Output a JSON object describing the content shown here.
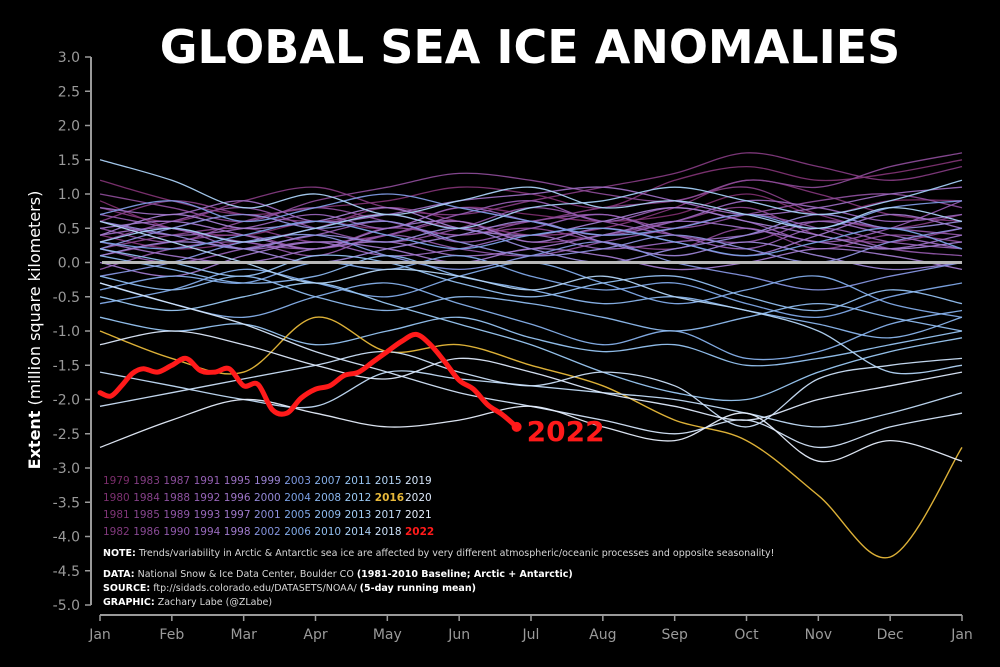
{
  "chart_data": {
    "type": "line",
    "title": "GLOBAL SEA ICE ANOMALIES",
    "ylabel_bold": "Extent",
    "ylabel_rest": "(million square kilometers)",
    "xlabel": "",
    "ylim": [
      -5.0,
      3.0
    ],
    "yticks": [
      "3.0",
      "2.5",
      "2.0",
      "1.5",
      "1.0",
      "0.5",
      "0.0",
      "-0.5",
      "-1.0",
      "-1.5",
      "-2.0",
      "-2.5",
      "-3.0",
      "-3.5",
      "-4.0",
      "-4.5",
      "-5.0"
    ],
    "ytick_values": [
      3.0,
      2.5,
      2.0,
      1.5,
      1.0,
      0.5,
      0.0,
      -0.5,
      -1.0,
      -1.5,
      -2.0,
      -2.5,
      -3.0,
      -3.5,
      -4.0,
      -4.5,
      -5.0
    ],
    "months": [
      "Jan",
      "Feb",
      "Mar",
      "Apr",
      "May",
      "Jun",
      "Jul",
      "Aug",
      "Sep",
      "Oct",
      "Nov",
      "Dec",
      "Jan"
    ],
    "x_domain": [
      0,
      12
    ],
    "baseline_value": 0.0,
    "highlight": {
      "year": "2022",
      "color": "#ff1a1a",
      "x": [
        0.0,
        0.15,
        0.3,
        0.45,
        0.6,
        0.8,
        1.0,
        1.2,
        1.4,
        1.6,
        1.8,
        2.0,
        2.2,
        2.4,
        2.6,
        2.8,
        3.0,
        3.2,
        3.4,
        3.6,
        3.8,
        4.0,
        4.2,
        4.4,
        4.6,
        4.8,
        5.0,
        5.2,
        5.4,
        5.6,
        5.8
      ],
      "y": [
        -1.9,
        -1.95,
        -1.8,
        -1.62,
        -1.55,
        -1.6,
        -1.5,
        -1.4,
        -1.58,
        -1.6,
        -1.55,
        -1.8,
        -1.78,
        -2.15,
        -2.2,
        -1.98,
        -1.85,
        -1.8,
        -1.65,
        -1.6,
        -1.45,
        -1.3,
        -1.15,
        -1.05,
        -1.2,
        -1.45,
        -1.72,
        -1.85,
        -2.08,
        -2.22,
        -2.4
      ]
    },
    "series": [
      {
        "year": "1979",
        "color": "#7b2d6b",
        "values": [
          0.9,
          0.5,
          0.4,
          0.6,
          0.5,
          0.8,
          0.7,
          0.6,
          0.7,
          1.0,
          0.7,
          0.9,
          0.9
        ]
      },
      {
        "year": "1980",
        "color": "#7d3171",
        "values": [
          1.2,
          0.9,
          0.7,
          0.8,
          0.9,
          1.1,
          1.0,
          0.8,
          1.2,
          1.4,
          1.2,
          1.3,
          1.5
        ]
      },
      {
        "year": "1981",
        "color": "#7f3577",
        "values": [
          0.4,
          0.2,
          0.3,
          0.5,
          0.8,
          0.6,
          0.4,
          0.5,
          0.8,
          1.2,
          1.0,
          0.7,
          0.6
        ]
      },
      {
        "year": "1982",
        "color": "#81397d",
        "values": [
          0.8,
          0.6,
          0.9,
          1.1,
          0.8,
          0.7,
          0.9,
          1.1,
          1.3,
          1.6,
          1.4,
          1.2,
          1.4
        ]
      },
      {
        "year": "1983",
        "color": "#833d83",
        "values": [
          0.6,
          0.9,
          0.7,
          0.6,
          0.7,
          0.5,
          0.6,
          0.8,
          0.9,
          1.1,
          0.7,
          0.5,
          0.7
        ]
      },
      {
        "year": "1984",
        "color": "#854189",
        "values": [
          0.2,
          0.4,
          0.5,
          0.3,
          0.4,
          0.6,
          0.3,
          0.4,
          0.6,
          0.8,
          0.4,
          0.3,
          0.5
        ]
      },
      {
        "year": "1985",
        "color": "#87468f",
        "values": [
          0.1,
          0.3,
          0.4,
          0.2,
          0.5,
          0.4,
          0.5,
          0.3,
          0.2,
          0.5,
          0.2,
          0.4,
          0.3
        ]
      },
      {
        "year": "1986",
        "color": "#894a95",
        "values": [
          1.0,
          0.8,
          0.6,
          0.9,
          1.1,
          1.3,
          1.2,
          1.0,
          0.9,
          1.2,
          1.1,
          1.4,
          1.6
        ]
      },
      {
        "year": "1987",
        "color": "#8b4e9b",
        "values": [
          0.5,
          0.3,
          0.6,
          0.8,
          0.6,
          0.4,
          0.6,
          0.7,
          0.5,
          0.7,
          0.9,
          1.0,
          0.8
        ]
      },
      {
        "year": "1988",
        "color": "#8d52a1",
        "values": [
          0.3,
          0.6,
          0.8,
          0.5,
          0.3,
          0.5,
          0.8,
          0.6,
          0.4,
          0.3,
          0.6,
          0.5,
          0.4
        ]
      },
      {
        "year": "1989",
        "color": "#8f56a7",
        "values": [
          -0.1,
          0.2,
          0.3,
          0.1,
          0.4,
          0.2,
          0.1,
          0.3,
          0.5,
          0.7,
          0.5,
          0.2,
          0.1
        ]
      },
      {
        "year": "1990",
        "color": "#915aad",
        "values": [
          0.7,
          0.5,
          0.3,
          0.2,
          0.4,
          0.7,
          0.9,
          0.6,
          0.8,
          0.6,
          0.3,
          0.5,
          0.9
        ]
      },
      {
        "year": "1991",
        "color": "#935fb2",
        "values": [
          0.2,
          0.0,
          0.2,
          0.4,
          0.6,
          0.3,
          0.5,
          0.7,
          0.4,
          0.2,
          0.5,
          0.3,
          0.2
        ]
      },
      {
        "year": "1992",
        "color": "#9563b6",
        "values": [
          0.6,
          0.4,
          0.5,
          0.7,
          0.5,
          0.8,
          0.6,
          0.4,
          0.6,
          0.9,
          0.8,
          0.6,
          0.7
        ]
      },
      {
        "year": "1993",
        "color": "#9767ba",
        "values": [
          0.4,
          0.5,
          0.2,
          0.3,
          0.1,
          0.2,
          0.4,
          0.2,
          0.3,
          0.4,
          0.6,
          0.4,
          0.2
        ]
      },
      {
        "year": "1994",
        "color": "#996bbe",
        "values": [
          0.8,
          0.7,
          0.9,
          0.6,
          0.7,
          0.9,
          1.0,
          1.1,
          0.9,
          0.7,
          0.8,
          1.0,
          1.1
        ]
      },
      {
        "year": "1995",
        "color": "#9b70c2",
        "values": [
          0.3,
          0.1,
          0.0,
          0.2,
          0.3,
          0.1,
          0.2,
          0.4,
          0.6,
          0.5,
          0.3,
          0.2,
          0.4
        ]
      },
      {
        "year": "1996",
        "color": "#9d74c6",
        "values": [
          0.5,
          0.6,
          0.4,
          0.2,
          0.5,
          0.6,
          0.3,
          0.5,
          0.3,
          0.1,
          0.4,
          0.7,
          0.5
        ]
      },
      {
        "year": "1997",
        "color": "#9f78ca",
        "values": [
          0.0,
          -0.2,
          0.1,
          0.3,
          0.2,
          0.0,
          0.2,
          0.1,
          -0.1,
          0.0,
          0.2,
          0.1,
          -0.1
        ]
      },
      {
        "year": "1998",
        "color": "#a17cce",
        "values": [
          0.4,
          0.7,
          0.5,
          0.6,
          0.8,
          0.5,
          0.4,
          0.6,
          0.8,
          0.6,
          0.4,
          0.2,
          0.3
        ]
      },
      {
        "year": "1999",
        "color": "#9a82d2",
        "values": [
          0.1,
          0.3,
          0.2,
          0.0,
          0.2,
          0.4,
          0.6,
          0.3,
          0.1,
          0.3,
          0.1,
          -0.1,
          0.0
        ]
      },
      {
        "year": "2000",
        "color": "#9388d6",
        "values": [
          0.6,
          0.4,
          0.2,
          0.4,
          0.3,
          0.5,
          0.2,
          0.0,
          0.2,
          0.4,
          0.7,
          0.5,
          0.6
        ]
      },
      {
        "year": "2001",
        "color": "#8c8eda",
        "values": [
          0.2,
          0.5,
          0.7,
          0.5,
          0.6,
          0.3,
          0.1,
          0.2,
          0.4,
          0.2,
          0.0,
          0.3,
          0.5
        ]
      },
      {
        "year": "2002",
        "color": "#8594de",
        "values": [
          -0.2,
          0.0,
          0.3,
          0.4,
          0.1,
          -0.1,
          0.1,
          0.3,
          0.0,
          -0.2,
          -0.4,
          -0.2,
          0.0
        ]
      },
      {
        "year": "2003",
        "color": "#7e9ae2",
        "values": [
          0.7,
          0.9,
          0.6,
          0.8,
          1.0,
          0.8,
          0.6,
          0.4,
          0.5,
          0.7,
          0.5,
          0.8,
          0.9
        ]
      },
      {
        "year": "2004",
        "color": "#7aa0e4",
        "values": [
          0.3,
          0.2,
          0.4,
          0.6,
          0.4,
          0.2,
          0.4,
          0.5,
          0.3,
          0.1,
          0.3,
          0.5,
          0.2
        ]
      },
      {
        "year": "2005",
        "color": "#7ea6e6",
        "values": [
          -0.4,
          -0.2,
          -0.3,
          0.0,
          -0.1,
          0.1,
          -0.2,
          -0.4,
          -0.3,
          -0.6,
          -0.8,
          -0.5,
          -0.3
        ]
      },
      {
        "year": "2006",
        "color": "#82abe8",
        "values": [
          -0.6,
          -0.4,
          -0.1,
          -0.3,
          -0.5,
          -0.2,
          0.0,
          -0.3,
          -0.6,
          -0.4,
          -0.2,
          -0.6,
          -0.8
        ]
      },
      {
        "year": "2007",
        "color": "#86b0ea",
        "values": [
          -0.3,
          -0.6,
          -0.8,
          -0.5,
          -0.3,
          -0.6,
          -0.9,
          -1.2,
          -1.0,
          -1.4,
          -1.3,
          -0.9,
          -0.7
        ]
      },
      {
        "year": "2008",
        "color": "#8ab5ec",
        "values": [
          0.1,
          -0.1,
          -0.3,
          -0.2,
          0.1,
          -0.2,
          -0.4,
          -0.6,
          -0.5,
          -0.7,
          -0.9,
          -1.1,
          -0.8
        ]
      },
      {
        "year": "2009",
        "color": "#8ebaee",
        "values": [
          -0.2,
          -0.4,
          -0.2,
          -0.5,
          -0.7,
          -0.5,
          -0.6,
          -0.8,
          -1.0,
          -0.8,
          -0.6,
          -0.8,
          -1.0
        ]
      },
      {
        "year": "2010",
        "color": "#92bff0",
        "values": [
          0.2,
          0.0,
          -0.2,
          0.1,
          0.0,
          -0.3,
          -0.5,
          -0.3,
          -0.2,
          -0.5,
          -0.7,
          -0.4,
          -0.6
        ]
      },
      {
        "year": "2011",
        "color": "#96c4f2",
        "values": [
          -0.8,
          -1.0,
          -0.9,
          -1.2,
          -1.0,
          -0.8,
          -1.1,
          -1.3,
          -1.2,
          -1.5,
          -1.4,
          -1.2,
          -1.0
        ]
      },
      {
        "year": "2012",
        "color": "#9ac8f3",
        "values": [
          -0.5,
          -0.7,
          -0.5,
          -0.3,
          -0.6,
          -0.9,
          -1.2,
          -1.6,
          -1.9,
          -2.0,
          -1.6,
          -1.3,
          -1.1
        ]
      },
      {
        "year": "2013",
        "color": "#a2ccf4",
        "values": [
          0.3,
          0.5,
          0.3,
          0.5,
          0.7,
          0.5,
          0.8,
          0.9,
          1.1,
          0.9,
          0.7,
          0.9,
          1.2
        ]
      },
      {
        "year": "2014",
        "color": "#aad0f5",
        "values": [
          1.5,
          1.2,
          0.8,
          1.0,
          0.7,
          0.9,
          1.1,
          0.8,
          0.9,
          0.7,
          0.5,
          0.8,
          0.6
        ]
      },
      {
        "year": "2015",
        "color": "#b2d4f6",
        "values": [
          0.6,
          0.3,
          0.0,
          -0.3,
          -0.1,
          -0.2,
          -0.4,
          -0.2,
          -0.5,
          -0.7,
          -1.0,
          -1.6,
          -1.5
        ]
      },
      {
        "year": "2016",
        "color": "#e8b93a",
        "values": [
          -1.0,
          -1.4,
          -1.6,
          -0.8,
          -1.3,
          -1.2,
          -1.5,
          -1.8,
          -2.3,
          -2.6,
          -3.4,
          -4.3,
          -2.7
        ]
      },
      {
        "year": "2017",
        "color": "#c2dcf8",
        "values": [
          -1.6,
          -1.8,
          -2.0,
          -2.1,
          -1.6,
          -1.7,
          -1.8,
          -1.9,
          -2.0,
          -2.2,
          -2.4,
          -2.2,
          -1.9
        ]
      },
      {
        "year": "2018",
        "color": "#cbe0f9",
        "values": [
          -2.1,
          -1.9,
          -1.7,
          -1.5,
          -1.3,
          -1.6,
          -1.8,
          -1.6,
          -1.8,
          -2.4,
          -1.7,
          -1.5,
          -1.4
        ]
      },
      {
        "year": "2019",
        "color": "#d4e5fa",
        "values": [
          -0.3,
          -0.6,
          -0.9,
          -1.3,
          -1.6,
          -1.9,
          -2.1,
          -2.3,
          -2.5,
          -2.3,
          -2.7,
          -2.4,
          -2.2
        ]
      },
      {
        "year": "2020",
        "color": "#dde9fb",
        "values": [
          -1.2,
          -1.0,
          -1.2,
          -1.5,
          -1.7,
          -1.4,
          -1.6,
          -1.9,
          -2.1,
          -2.3,
          -2.0,
          -1.8,
          -1.6
        ]
      },
      {
        "year": "2021",
        "color": "#e6eefc",
        "values": [
          -2.7,
          -2.3,
          -2.0,
          -2.2,
          -2.4,
          -2.3,
          -2.1,
          -2.4,
          -2.6,
          -2.2,
          -2.9,
          -2.6,
          -2.9
        ]
      }
    ],
    "legend": {
      "rows": [
        [
          "1979",
          "1983",
          "1987",
          "1991",
          "1995",
          "1999",
          "2003",
          "2007",
          "2011",
          "2015",
          "2019"
        ],
        [
          "1980",
          "1984",
          "1988",
          "1992",
          "1996",
          "2000",
          "2004",
          "2008",
          "2012",
          "2016",
          "2020"
        ],
        [
          "1981",
          "1985",
          "1989",
          "1993",
          "1997",
          "2001",
          "2005",
          "2009",
          "2013",
          "2017",
          "2021"
        ],
        [
          "1982",
          "1986",
          "1990",
          "1994",
          "1998",
          "2002",
          "2006",
          "2010",
          "2014",
          "2018",
          "2022"
        ]
      ]
    },
    "notes": {
      "note_bold": "NOTE:",
      "note_text": " Trends/variability in Arctic & Antarctic sea ice are affected by very different atmospheric/oceanic processes and opposite seasonality!",
      "data_bold": "DATA:",
      "data_text": " National Snow & Ice Data Center, Boulder CO ",
      "data_bold2": "(1981-2010 Baseline; Arctic + Antarctic)",
      "source_bold": "SOURCE:",
      "source_text": " ftp://sidads.colorado.edu/DATASETS/NOAA/ ",
      "source_bold2": "(5-day running mean)",
      "graphic_bold": "GRAPHIC:",
      "graphic_text": " Zachary Labe (@ZLabe)"
    }
  }
}
